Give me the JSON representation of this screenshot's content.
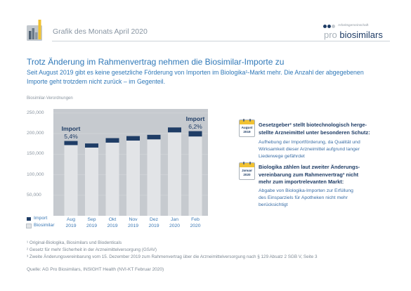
{
  "header": {
    "title": "Grafik des Monats April 2020"
  },
  "brand": {
    "tagline": "Arbeitsgemeinschaft",
    "pro": "pro",
    "name": "biosimilars"
  },
  "headline": "Trotz Änderung im Rahmenvertrag nehmen die Biosimilar-Importe zu",
  "intro_lines": [
    "Seit August 2019 gibt es keine gesetzliche Förderung von Importen im Biologika¹-Markt mehr. Die Anzahl der abgegebenen",
    "Importe geht trotzdem nicht zurück – im Gegenteil."
  ],
  "colors": {
    "accent_blue": "#2f78b8",
    "navy": "#1f3d66",
    "calendar_yellow": "#f1c232",
    "plot_background": "#c6cacf",
    "gridline": "#d4d7db"
  },
  "chart_data": {
    "type": "bar",
    "stacked": true,
    "ylabel": "Biosimilar-Verordnungen",
    "categories": [
      "Aug 2019",
      "Sep 2019",
      "Okt 2019",
      "Nov 2019",
      "Dez 2019",
      "Jan 2020",
      "Feb 2020"
    ],
    "series": [
      {
        "name": "Import",
        "color": "#1f3d66",
        "values": [
          10000,
          10000,
          11000,
          11000,
          11000,
          12000,
          13000
        ]
      },
      {
        "name": "Biosimilar",
        "color": "#e2e4e7",
        "values": [
          172000,
          166000,
          178000,
          183000,
          186000,
          203000,
          193000
        ]
      }
    ],
    "ylim": [
      0,
      260000
    ],
    "yticks": [
      250000,
      200000,
      150000,
      100000,
      50000
    ],
    "ytick_labels": [
      "250,000",
      "200,000",
      "150,000",
      "100,000",
      "50,000"
    ],
    "annotations": [
      {
        "category": "Aug 2019",
        "label": "Import",
        "value": "5,4%"
      },
      {
        "category": "Feb 2020",
        "label": "Import",
        "value": "6,2%"
      }
    ],
    "legend": "bottom-left",
    "grid": true
  },
  "info_boxes": [
    {
      "calendar_month": "August",
      "calendar_year": "2019",
      "heading_lines": [
        "Gesetzgeber² stellt biotechnologisch herge-",
        "stellte Arzneimittel unter besonderen Schutz:"
      ],
      "body_lines": [
        "Aufhebung der Importförderung, da Qualität und",
        "Wirksamkeit dieser Arzneimittel aufgrund langer",
        "Liederwege gefährdet"
      ]
    },
    {
      "calendar_month": "Januar",
      "calendar_year": "2020",
      "heading_lines": [
        "Biologika zählen laut zweiter Änderungs-",
        "vereinbarung zum Rahmenvertrag³ nicht",
        "mehr zum importrelevanten Markt:"
      ],
      "body_lines": [
        "Abgabe von Biologika-Importen zur Erfüllung",
        "des Einsparziels für Apotheken nicht mehr",
        "berücksichtigt"
      ]
    }
  ],
  "footnotes": [
    "¹ Original-Biologika, Biosimilars und Biodenticals",
    "² Gesetz für mehr Sicherheit in der Arzneimittelversorgung (GSAV)",
    "³ Zweite Änderungsvereinbarung vom 15. Dezember 2019 zum Rahmenvertrag über die Arzneimittelversorgung nach § 129 Absatz 2 SGB V, Seite 3"
  ],
  "source": "Quelle: AG Pro Biosimilars, INSIGHT Health (NVI-KT Februar 2020)"
}
